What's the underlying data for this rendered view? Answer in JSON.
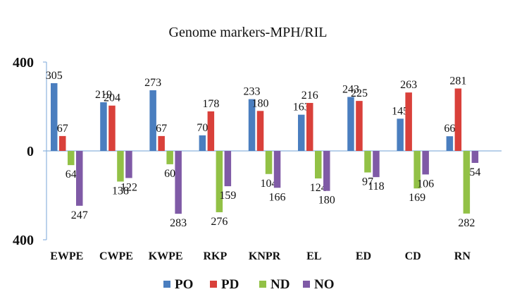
{
  "chart_data": {
    "type": "bar",
    "title": "Genome markers-MPH/RIL",
    "xlabel": "",
    "ylabel": "",
    "ylim": [
      -400,
      400
    ],
    "yticks": [
      {
        "value": 400,
        "label": "400"
      },
      {
        "value": 0,
        "label": "0"
      },
      {
        "value": -400,
        "label": "400"
      }
    ],
    "categories": [
      "EWPE",
      "CWPE",
      "KWPE",
      "RKP",
      "KNPR",
      "EL",
      "ED",
      "CD",
      "RN"
    ],
    "series": [
      {
        "name": "PO",
        "color": "#4a7ebf",
        "values": [
          305,
          219,
          273,
          70,
          233,
          163,
          243,
          145,
          66
        ]
      },
      {
        "name": "PD",
        "color": "#d9403a",
        "values": [
          67,
          204,
          67,
          178,
          180,
          216,
          225,
          263,
          281
        ]
      },
      {
        "name": "ND",
        "color": "#92c146",
        "values": [
          -64,
          -138,
          -60,
          -276,
          -104,
          -124,
          -97,
          -169,
          -282
        ]
      },
      {
        "name": "NO",
        "color": "#7f5aa6",
        "values": [
          -247,
          -122,
          -283,
          -159,
          -166,
          -180,
          -118,
          -106,
          -54
        ]
      }
    ],
    "data_labels": [
      [
        "305",
        "219",
        "273",
        "70",
        "233",
        "163",
        "243",
        "145",
        "66"
      ],
      [
        "67",
        "204",
        "67",
        "178",
        "180",
        "216",
        "225",
        "263",
        "281"
      ],
      [
        "64",
        "138",
        "60",
        "276",
        "104",
        "124",
        "97",
        "169",
        "282"
      ],
      [
        "247",
        "122",
        "283",
        "159",
        "166",
        "180",
        "118",
        "106",
        "54"
      ]
    ],
    "legend_position": "bottom",
    "grid": false
  }
}
